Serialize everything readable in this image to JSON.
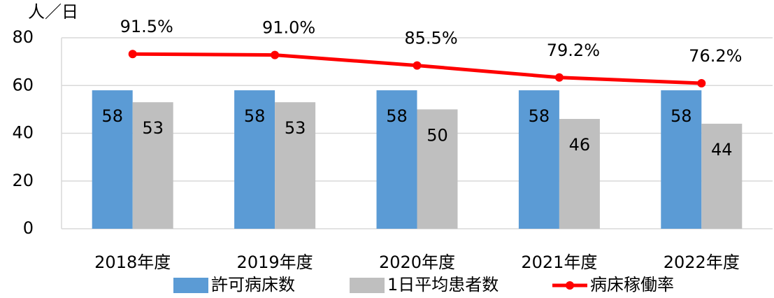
{
  "chart_data": {
    "type": "bar",
    "unit_label": "人／日",
    "categories": [
      "2018年度",
      "2019年度",
      "2020年度",
      "2021年度",
      "2022年度"
    ],
    "series": [
      {
        "name": "許可病床数",
        "color": "#5b9bd5",
        "values": [
          58,
          58,
          58,
          58,
          58
        ]
      },
      {
        "name": "1日平均患者数",
        "color": "#bfbfbf",
        "values": [
          53,
          53,
          50,
          46,
          44
        ]
      },
      {
        "name": "病床稼働率",
        "color": "#ff0000",
        "type": "line",
        "axis": "y2",
        "values": [
          91.5,
          91.0,
          85.5,
          79.2,
          76.2
        ],
        "value_labels": [
          "91.5%",
          "91.0%",
          "85.5%",
          "79.2%",
          "76.2%"
        ]
      }
    ],
    "ylim": [
      0,
      80
    ],
    "yticks": [
      0,
      20,
      40,
      60,
      80
    ],
    "y2lim": [
      0,
      100
    ],
    "grid": true,
    "legend": "bottom"
  }
}
